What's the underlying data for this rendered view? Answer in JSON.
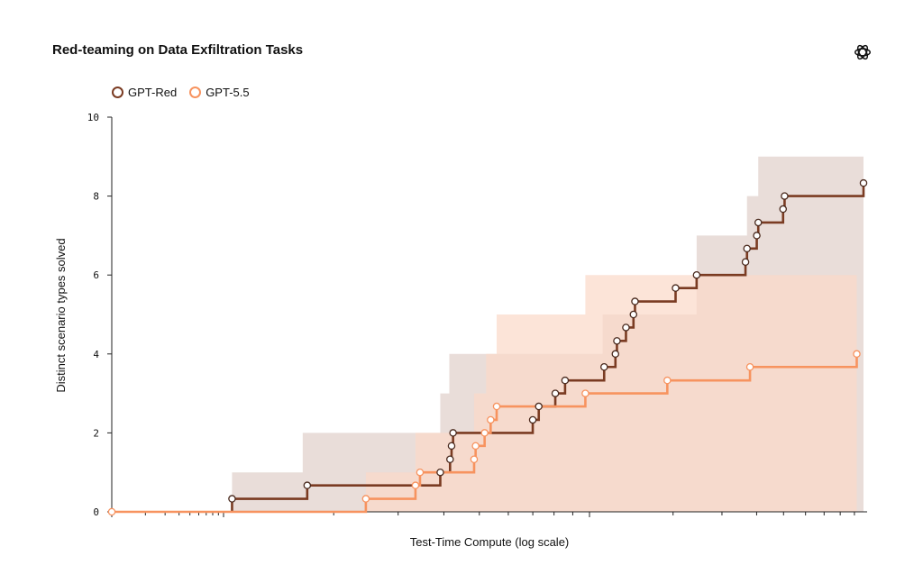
{
  "chart_data": {
    "type": "step-line",
    "title": "Red-teaming on Data Exfiltration Tasks",
    "xlabel": "Test-Time Compute (log scale)",
    "ylabel": "Distinct scenario types solved",
    "x_scale": "log",
    "x_tick_labels": "none",
    "ylim": [
      0,
      10
    ],
    "yticks": [
      "0",
      "2",
      "4",
      "6",
      "8",
      "10"
    ],
    "legend_position": "top-left",
    "series": [
      {
        "name": "GPT-Red",
        "color": "#7a3b22",
        "band_color": "#e8dbd7",
        "steps": [
          {
            "x": 0.16,
            "y": 0.33
          },
          {
            "x": 0.26,
            "y": 0.67
          },
          {
            "x": 0.437,
            "y": 1.0
          },
          {
            "x": 0.45,
            "y": 1.33
          },
          {
            "x": 0.452,
            "y": 1.67
          },
          {
            "x": 0.454,
            "y": 2.0
          },
          {
            "x": 0.56,
            "y": 2.33
          },
          {
            "x": 0.568,
            "y": 2.67
          },
          {
            "x": 0.59,
            "y": 3.0
          },
          {
            "x": 0.603,
            "y": 3.33
          },
          {
            "x": 0.655,
            "y": 3.67
          },
          {
            "x": 0.67,
            "y": 4.0
          },
          {
            "x": 0.672,
            "y": 4.33
          },
          {
            "x": 0.684,
            "y": 4.67
          },
          {
            "x": 0.694,
            "y": 5.0
          },
          {
            "x": 0.696,
            "y": 5.33
          },
          {
            "x": 0.75,
            "y": 5.67
          },
          {
            "x": 0.778,
            "y": 6.0
          },
          {
            "x": 0.843,
            "y": 6.33
          },
          {
            "x": 0.845,
            "y": 6.67
          },
          {
            "x": 0.858,
            "y": 7.0
          },
          {
            "x": 0.86,
            "y": 7.33
          },
          {
            "x": 0.893,
            "y": 7.67
          },
          {
            "x": 0.895,
            "y": 8.0
          },
          {
            "x": 1.0,
            "y": 8.33
          }
        ],
        "band": [
          {
            "x": 0.16,
            "y": 1.0
          },
          {
            "x": 0.254,
            "y": 2.0
          },
          {
            "x": 0.437,
            "y": 3.0
          },
          {
            "x": 0.449,
            "y": 4.0
          },
          {
            "x": 0.498,
            "y": 4.0
          },
          {
            "x": 0.653,
            "y": 5.0
          },
          {
            "x": 0.778,
            "y": 7.0
          },
          {
            "x": 0.845,
            "y": 8.0
          },
          {
            "x": 0.86,
            "y": 9.0
          }
        ]
      },
      {
        "name": "GPT-5.5",
        "color": "#f7935f",
        "band_color": "#fbd9c8",
        "steps": [
          {
            "x": 0.0,
            "y": 0.0
          },
          {
            "x": 0.338,
            "y": 0.33
          },
          {
            "x": 0.404,
            "y": 0.67
          },
          {
            "x": 0.41,
            "y": 1.0
          },
          {
            "x": 0.482,
            "y": 1.33
          },
          {
            "x": 0.484,
            "y": 1.67
          },
          {
            "x": 0.496,
            "y": 2.0
          },
          {
            "x": 0.504,
            "y": 2.33
          },
          {
            "x": 0.512,
            "y": 2.67
          },
          {
            "x": 0.63,
            "y": 3.0
          },
          {
            "x": 0.739,
            "y": 3.33
          },
          {
            "x": 0.849,
            "y": 3.67
          },
          {
            "x": 0.991,
            "y": 4.0
          }
        ],
        "band": [
          {
            "x": 0.338,
            "y": 1.0
          },
          {
            "x": 0.404,
            "y": 2.0
          },
          {
            "x": 0.482,
            "y": 3.0
          },
          {
            "x": 0.498,
            "y": 4.0
          },
          {
            "x": 0.512,
            "y": 5.0
          },
          {
            "x": 0.63,
            "y": 6.0
          }
        ]
      }
    ]
  }
}
